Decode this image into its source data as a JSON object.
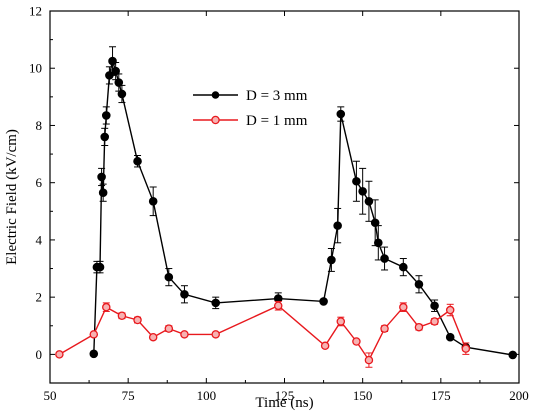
{
  "chart_data": {
    "type": "line",
    "xlabel": "Time (ns)",
    "ylabel": "Electric Field (kV/cm)",
    "xlim": [
      50,
      200
    ],
    "ylim": [
      -1,
      12
    ],
    "xticks": [
      50,
      75,
      100,
      125,
      150,
      175,
      200
    ],
    "yticks": [
      0,
      2,
      4,
      6,
      8,
      10,
      12
    ],
    "grid": false,
    "legend_position": "upper-center",
    "series": [
      {
        "name": "D = 3 mm",
        "color": "#000000",
        "marker": "filled-circle",
        "points": [
          {
            "x": 64,
            "y": 0.02,
            "err": 0
          },
          {
            "x": 65,
            "y": 3.05,
            "err": 0.2
          },
          {
            "x": 66,
            "y": 3.05,
            "err": 0.2
          },
          {
            "x": 66.5,
            "y": 6.2,
            "err": 0.3
          },
          {
            "x": 67,
            "y": 5.65,
            "err": 0.3
          },
          {
            "x": 67.5,
            "y": 7.6,
            "err": 0.3
          },
          {
            "x": 68,
            "y": 8.35,
            "err": 0.3
          },
          {
            "x": 69,
            "y": 9.75,
            "err": 0.3
          },
          {
            "x": 70,
            "y": 10.25,
            "err": 0.5
          },
          {
            "x": 71,
            "y": 9.9,
            "err": 0.3
          },
          {
            "x": 72,
            "y": 9.5,
            "err": 0.3
          },
          {
            "x": 73,
            "y": 9.1,
            "err": 0.3
          },
          {
            "x": 78,
            "y": 6.75,
            "err": 0.2
          },
          {
            "x": 83,
            "y": 5.35,
            "err": 0.5
          },
          {
            "x": 88,
            "y": 2.7,
            "err": 0.3
          },
          {
            "x": 93,
            "y": 2.1,
            "err": 0.3
          },
          {
            "x": 103,
            "y": 1.8,
            "err": 0.2
          },
          {
            "x": 123,
            "y": 1.95,
            "err": 0.2
          },
          {
            "x": 137.5,
            "y": 1.85,
            "err": 0
          },
          {
            "x": 140,
            "y": 3.3,
            "err": 0.4
          },
          {
            "x": 142,
            "y": 4.5,
            "err": 0.6
          },
          {
            "x": 143,
            "y": 8.4,
            "err": 0.25
          },
          {
            "x": 148,
            "y": 6.05,
            "err": 0.7
          },
          {
            "x": 150,
            "y": 5.7,
            "err": 0.8
          },
          {
            "x": 152,
            "y": 5.35,
            "err": 0.7
          },
          {
            "x": 154,
            "y": 4.6,
            "err": 0.8
          },
          {
            "x": 155,
            "y": 3.9,
            "err": 0.6
          },
          {
            "x": 157,
            "y": 3.35,
            "err": 0.4
          },
          {
            "x": 163,
            "y": 3.05,
            "err": 0.3
          },
          {
            "x": 168,
            "y": 2.45,
            "err": 0.3
          },
          {
            "x": 173,
            "y": 1.7,
            "err": 0.2
          },
          {
            "x": 178,
            "y": 0.6,
            "err": 0
          },
          {
            "x": 183,
            "y": 0.25,
            "err": 0
          },
          {
            "x": 198,
            "y": -0.02,
            "err": 0
          }
        ]
      },
      {
        "name": "D = 1 mm",
        "color": "#e8191e",
        "marker": "open-circle",
        "points": [
          {
            "x": 53,
            "y": 0,
            "err": 0
          },
          {
            "x": 64,
            "y": 0.7,
            "err": 0
          },
          {
            "x": 68,
            "y": 1.65,
            "err": 0.15
          },
          {
            "x": 73,
            "y": 1.35,
            "err": 0.1
          },
          {
            "x": 78,
            "y": 1.2,
            "err": 0.1
          },
          {
            "x": 83,
            "y": 0.6,
            "err": 0
          },
          {
            "x": 88,
            "y": 0.9,
            "err": 0.1
          },
          {
            "x": 93,
            "y": 0.7,
            "err": 0
          },
          {
            "x": 103,
            "y": 0.7,
            "err": 0
          },
          {
            "x": 123,
            "y": 1.7,
            "err": 0.15
          },
          {
            "x": 138,
            "y": 0.3,
            "err": 0
          },
          {
            "x": 143,
            "y": 1.15,
            "err": 0.15
          },
          {
            "x": 148,
            "y": 0.45,
            "err": 0
          },
          {
            "x": 152,
            "y": -0.2,
            "err": 0.25
          },
          {
            "x": 157,
            "y": 0.9,
            "err": 0.1
          },
          {
            "x": 163,
            "y": 1.65,
            "err": 0.15
          },
          {
            "x": 168,
            "y": 0.95,
            "err": 0.1
          },
          {
            "x": 173,
            "y": 1.15,
            "err": 0.1
          },
          {
            "x": 178,
            "y": 1.55,
            "err": 0.2
          },
          {
            "x": 183,
            "y": 0.2,
            "err": 0.2
          }
        ]
      }
    ]
  }
}
